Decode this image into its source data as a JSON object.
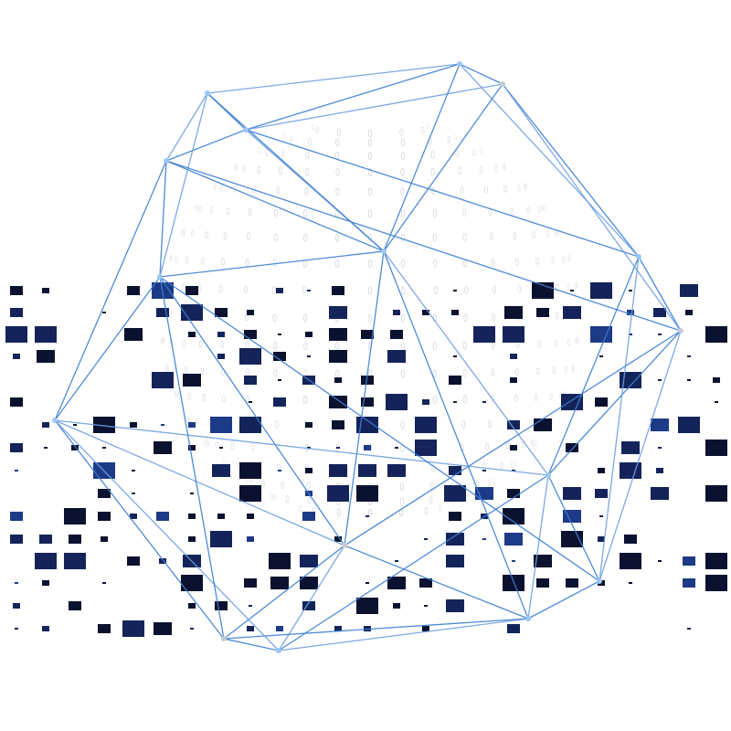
{
  "illustration": {
    "subject": "wireframe-polyhedron-over-dotted-sphere-with-pixel-grid",
    "colors": {
      "background": "#ffffff",
      "edge_primary": "#3d7fd1",
      "edge_secondary": "#6f9fe0",
      "vertex": "#9cc6f5",
      "vertex_grey": "#c8ccd4",
      "sphere_dots": "#c9ced8",
      "pixel_dark": "#0b1230",
      "pixel_mid": "#14245a",
      "pixel_blue": "#1d3a86"
    }
  }
}
